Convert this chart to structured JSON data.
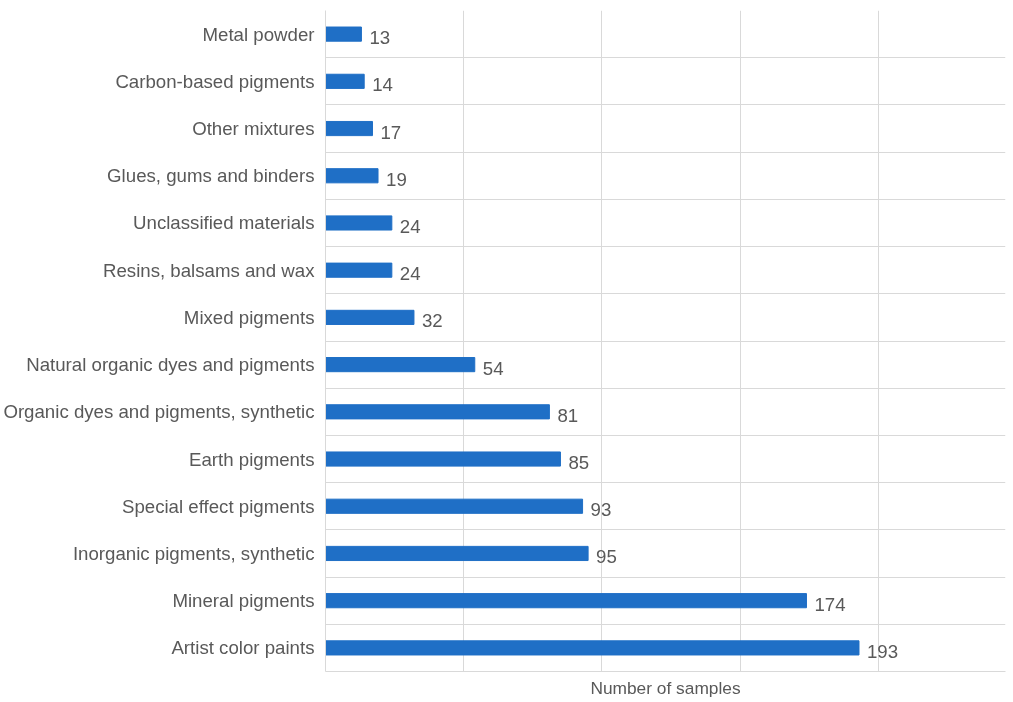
{
  "chart_data": {
    "type": "bar",
    "orientation": "horizontal",
    "xlabel": "Number of samples",
    "categories": [
      "Metal powder",
      "Carbon-based pigments",
      "Other mixtures",
      "Glues, gums and binders",
      "Unclassified materials",
      "Resins, balsams and wax",
      "Mixed pigments",
      "Natural organic dyes and pigments",
      "Organic dyes and pigments, synthetic",
      "Earth pigments",
      "Special effect pigments",
      "Inorganic pigments, synthetic",
      "Mineral pigments",
      "Artist color paints"
    ],
    "values": [
      13,
      14,
      17,
      19,
      24,
      24,
      32,
      54,
      81,
      85,
      93,
      95,
      174,
      193
    ],
    "color": "#1f6fc6",
    "data_labels": true,
    "xlim": [
      0,
      246
    ],
    "xticks": [
      {
        "value": 0,
        "label": null
      },
      {
        "value": 50,
        "label": null
      },
      {
        "value": 100,
        "label": null
      },
      {
        "value": 150,
        "label": null
      },
      {
        "value": 200,
        "label": null
      }
    ],
    "tick_labels": "y",
    "grid": true
  }
}
